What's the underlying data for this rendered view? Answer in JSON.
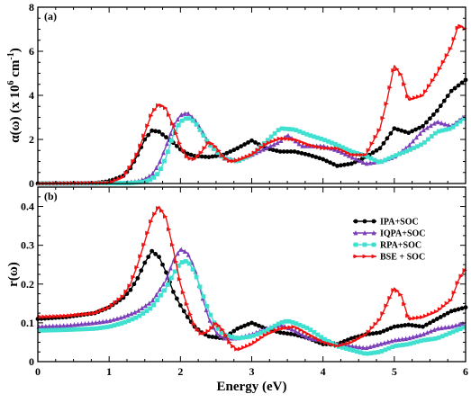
{
  "chart_data": [
    {
      "type": "line",
      "panel_label": "(a)",
      "xlabel": "",
      "ylabel": "α(ω) (x 10^6 cm^-1)",
      "ylabel_parts": {
        "base": "α(ω) (x 10",
        "exp1": "6",
        "mid": " cm",
        "exp2": "-1",
        "end": ")"
      },
      "xlim": [
        0,
        6
      ],
      "ylim": [
        0,
        8
      ],
      "xticks": [
        "0",
        "1",
        "2",
        "3",
        "4",
        "5",
        "6"
      ],
      "yticks": [
        "0",
        "2",
        "4",
        "6",
        "8"
      ],
      "grid": false,
      "series": [
        {
          "name": "IPA+SOC",
          "color": "#000000",
          "marker": "circle",
          "x": [
            0,
            0.8,
            1.0,
            1.2,
            1.3,
            1.4,
            1.5,
            1.6,
            1.7,
            1.8,
            1.9,
            2.0,
            2.1,
            2.2,
            2.4,
            2.6,
            2.8,
            3.0,
            3.2,
            3.4,
            3.6,
            3.8,
            4.0,
            4.2,
            4.4,
            4.6,
            4.8,
            5.0,
            5.2,
            5.4,
            5.6,
            5.8,
            6.0
          ],
          "y": [
            0,
            0.02,
            0.1,
            0.35,
            0.7,
            1.3,
            2.0,
            2.4,
            2.35,
            2.1,
            1.85,
            1.55,
            1.35,
            1.25,
            1.2,
            1.3,
            1.6,
            1.95,
            1.6,
            1.45,
            1.45,
            1.3,
            1.1,
            0.8,
            0.9,
            1.2,
            1.6,
            2.5,
            2.3,
            2.6,
            3.3,
            4.2,
            4.7
          ]
        },
        {
          "name": "IQPA+SOC",
          "color": "#7a3fb8",
          "marker": "triangle",
          "x": [
            0,
            1.2,
            1.4,
            1.5,
            1.6,
            1.7,
            1.8,
            1.9,
            2.0,
            2.1,
            2.2,
            2.3,
            2.4,
            2.6,
            2.8,
            3.0,
            3.2,
            3.4,
            3.5,
            3.7,
            4.0,
            4.2,
            4.4,
            4.6,
            4.8,
            5.0,
            5.2,
            5.4,
            5.6,
            5.8,
            6.0
          ],
          "y": [
            0,
            0.02,
            0.1,
            0.2,
            0.4,
            0.9,
            1.7,
            2.6,
            3.1,
            3.2,
            2.9,
            2.4,
            1.8,
            1.15,
            1.05,
            1.3,
            1.6,
            1.9,
            2.2,
            1.7,
            1.7,
            1.5,
            1.2,
            0.9,
            1.0,
            1.2,
            1.7,
            2.4,
            2.8,
            2.6,
            3.1
          ]
        },
        {
          "name": "RPA+SOC",
          "color": "#40e0d0",
          "marker": "square",
          "x": [
            0,
            1.3,
            1.5,
            1.6,
            1.7,
            1.8,
            1.9,
            2.0,
            2.1,
            2.2,
            2.3,
            2.4,
            2.6,
            2.8,
            3.0,
            3.2,
            3.4,
            3.6,
            3.8,
            4.0,
            4.2,
            4.4,
            4.6,
            4.8,
            5.0,
            5.2,
            5.4,
            5.6,
            5.8,
            6.0
          ],
          "y": [
            0,
            0.02,
            0.08,
            0.2,
            0.5,
            1.2,
            2.2,
            2.8,
            3.0,
            2.8,
            2.3,
            1.8,
            1.15,
            1.0,
            1.3,
            1.9,
            2.5,
            2.45,
            2.2,
            2.0,
            1.75,
            1.45,
            1.25,
            0.95,
            1.25,
            1.5,
            1.8,
            2.35,
            2.5,
            3.0
          ]
        },
        {
          "name": "BSE + SOC",
          "color": "#ee1111",
          "marker": "triangle-right",
          "x": [
            0,
            1.0,
            1.2,
            1.3,
            1.4,
            1.5,
            1.6,
            1.7,
            1.8,
            1.9,
            2.0,
            2.1,
            2.2,
            2.3,
            2.4,
            2.5,
            2.6,
            2.7,
            2.8,
            3.0,
            3.2,
            3.4,
            3.6,
            3.8,
            4.0,
            4.2,
            4.4,
            4.6,
            4.8,
            4.9,
            5.0,
            5.1,
            5.2,
            5.4,
            5.6,
            5.8,
            5.9,
            6.0
          ],
          "y": [
            0,
            0.03,
            0.3,
            0.8,
            1.4,
            2.3,
            3.2,
            3.6,
            3.4,
            2.6,
            1.7,
            1.15,
            1.1,
            1.45,
            1.9,
            1.65,
            1.2,
            1.0,
            1.05,
            1.3,
            1.8,
            2.05,
            2.0,
            1.75,
            1.6,
            1.6,
            1.3,
            1.3,
            2.5,
            3.8,
            5.35,
            4.9,
            3.8,
            4.0,
            5.0,
            6.2,
            7.2,
            7.0
          ]
        }
      ]
    },
    {
      "type": "line",
      "panel_label": "(b)",
      "xlabel": "Energy (eV)",
      "ylabel": "r(ω)",
      "xlim": [
        0,
        6
      ],
      "ylim": [
        0,
        0.45
      ],
      "xticks": [
        "0",
        "1",
        "2",
        "3",
        "4",
        "5",
        "6"
      ],
      "yticks": [
        "0",
        "0.1",
        "0.2",
        "0.3",
        "0.4"
      ],
      "grid": false,
      "legend": "top-right",
      "series": [
        {
          "name": "IPA+SOC",
          "color": "#000000",
          "marker": "circle",
          "x": [
            0,
            0.4,
            0.8,
            1.0,
            1.2,
            1.3,
            1.4,
            1.5,
            1.6,
            1.7,
            1.8,
            1.9,
            2.0,
            2.1,
            2.2,
            2.3,
            2.4,
            2.6,
            2.8,
            3.0,
            3.2,
            3.4,
            3.6,
            3.8,
            4.0,
            4.2,
            4.4,
            4.6,
            4.8,
            5.0,
            5.2,
            5.4,
            5.6,
            5.8,
            6.0
          ],
          "y": [
            0.11,
            0.115,
            0.125,
            0.14,
            0.165,
            0.185,
            0.215,
            0.255,
            0.285,
            0.27,
            0.23,
            0.18,
            0.145,
            0.115,
            0.09,
            0.075,
            0.065,
            0.06,
            0.085,
            0.1,
            0.085,
            0.075,
            0.07,
            0.06,
            0.045,
            0.045,
            0.06,
            0.07,
            0.075,
            0.09,
            0.095,
            0.09,
            0.11,
            0.13,
            0.14
          ]
        },
        {
          "name": "IQPA+SOC",
          "color": "#7a3fb8",
          "marker": "triangle",
          "x": [
            0,
            0.4,
            0.8,
            1.0,
            1.2,
            1.4,
            1.6,
            1.8,
            1.9,
            2.0,
            2.1,
            2.2,
            2.3,
            2.4,
            2.5,
            2.6,
            2.8,
            3.0,
            3.2,
            3.4,
            3.6,
            3.8,
            4.0,
            4.2,
            4.4,
            4.6,
            4.8,
            5.0,
            5.2,
            5.4,
            5.6,
            5.8,
            6.0
          ],
          "y": [
            0.09,
            0.093,
            0.1,
            0.105,
            0.115,
            0.13,
            0.155,
            0.21,
            0.26,
            0.29,
            0.28,
            0.24,
            0.17,
            0.11,
            0.075,
            0.06,
            0.06,
            0.07,
            0.085,
            0.095,
            0.08,
            0.06,
            0.055,
            0.045,
            0.04,
            0.035,
            0.045,
            0.055,
            0.06,
            0.07,
            0.085,
            0.09,
            0.1
          ]
        },
        {
          "name": "RPA+SOC",
          "color": "#40e0d0",
          "marker": "square",
          "x": [
            0,
            0.4,
            0.8,
            1.0,
            1.2,
            1.4,
            1.6,
            1.8,
            1.9,
            2.0,
            2.1,
            2.2,
            2.3,
            2.4,
            2.5,
            2.6,
            2.8,
            3.0,
            3.2,
            3.4,
            3.5,
            3.6,
            3.8,
            4.0,
            4.2,
            4.4,
            4.6,
            4.8,
            5.0,
            5.2,
            5.4,
            5.6,
            5.8,
            6.0
          ],
          "y": [
            0.08,
            0.082,
            0.085,
            0.09,
            0.1,
            0.115,
            0.14,
            0.19,
            0.225,
            0.255,
            0.26,
            0.23,
            0.18,
            0.13,
            0.09,
            0.07,
            0.06,
            0.065,
            0.08,
            0.1,
            0.105,
            0.1,
            0.085,
            0.06,
            0.04,
            0.03,
            0.02,
            0.025,
            0.04,
            0.045,
            0.055,
            0.06,
            0.075,
            0.09
          ]
        },
        {
          "name": "BSE + SOC",
          "color": "#ee1111",
          "marker": "triangle-right",
          "x": [
            0,
            0.4,
            0.8,
            1.0,
            1.2,
            1.3,
            1.4,
            1.5,
            1.6,
            1.7,
            1.8,
            1.9,
            2.0,
            2.1,
            2.2,
            2.3,
            2.4,
            2.5,
            2.6,
            2.7,
            2.8,
            3.0,
            3.2,
            3.4,
            3.6,
            3.8,
            4.0,
            4.2,
            4.4,
            4.6,
            4.8,
            4.9,
            5.0,
            5.1,
            5.2,
            5.4,
            5.6,
            5.8,
            5.9,
            6.0
          ],
          "y": [
            0.115,
            0.118,
            0.125,
            0.14,
            0.17,
            0.2,
            0.25,
            0.31,
            0.37,
            0.4,
            0.37,
            0.29,
            0.2,
            0.14,
            0.09,
            0.07,
            0.08,
            0.1,
            0.08,
            0.045,
            0.03,
            0.045,
            0.07,
            0.085,
            0.09,
            0.07,
            0.05,
            0.04,
            0.05,
            0.07,
            0.11,
            0.15,
            0.19,
            0.17,
            0.11,
            0.115,
            0.13,
            0.16,
            0.21,
            0.24
          ]
        }
      ]
    }
  ]
}
